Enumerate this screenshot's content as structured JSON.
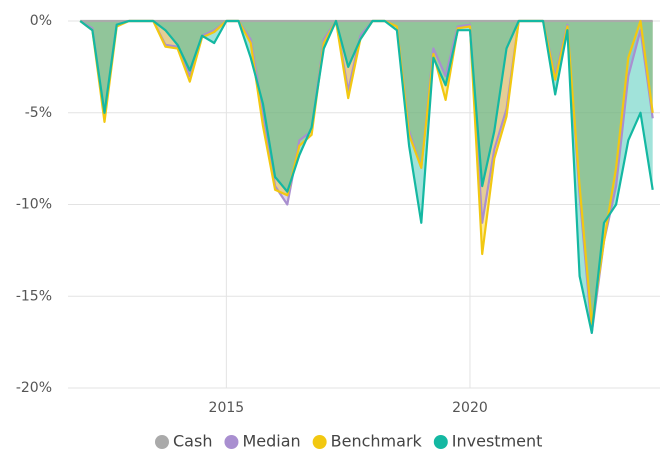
{
  "chart_data": {
    "type": "area",
    "x": [
      2012.0,
      2012.25,
      2012.5,
      2012.75,
      2013.0,
      2013.25,
      2013.5,
      2013.75,
      2014.0,
      2014.25,
      2014.5,
      2014.75,
      2015.0,
      2015.25,
      2015.5,
      2015.75,
      2016.0,
      2016.25,
      2016.5,
      2016.75,
      2017.0,
      2017.25,
      2017.5,
      2017.75,
      2018.0,
      2018.25,
      2018.5,
      2018.75,
      2019.0,
      2019.25,
      2019.5,
      2019.75,
      2020.0,
      2020.25,
      2020.5,
      2020.75,
      2021.0,
      2021.25,
      2021.5,
      2021.75,
      2022.0,
      2022.25,
      2022.5,
      2022.75,
      2023.0,
      2023.25,
      2023.5,
      2023.75
    ],
    "series": [
      {
        "name": "Cash",
        "color": "#aaaaaa",
        "values": [
          0,
          0,
          0,
          0,
          0,
          0,
          0,
          0,
          0,
          0,
          0,
          0,
          0,
          0,
          0,
          0,
          0,
          0,
          0,
          0,
          0,
          0,
          0,
          0,
          0,
          0,
          0,
          0,
          0,
          0,
          0,
          0,
          0,
          0,
          0,
          0,
          0,
          0,
          0,
          0,
          0,
          0,
          0,
          0,
          0,
          0,
          0,
          0
        ]
      },
      {
        "name": "Median",
        "color": "#a98fd0",
        "values": [
          0,
          -0.4,
          -5.2,
          -0.2,
          0,
          0,
          0,
          -1.3,
          -1.4,
          -3.0,
          -0.8,
          -0.5,
          0,
          0,
          -1.0,
          -5.0,
          -9.0,
          -10.0,
          -6.5,
          -6.0,
          -1.0,
          0,
          -3.8,
          -0.8,
          0,
          0,
          -0.3,
          -6.0,
          -8.0,
          -1.5,
          -3.0,
          -0.3,
          -0.2,
          -11.0,
          -7.0,
          -4.8,
          0,
          0,
          0,
          -3.0,
          -0.2,
          -9.5,
          -17.0,
          -12.0,
          -9.0,
          -3.0,
          -0.5,
          -5.3
        ]
      },
      {
        "name": "Benchmark",
        "color": "#f2c811",
        "values": [
          0,
          -0.5,
          -5.5,
          -0.3,
          0,
          0,
          0,
          -1.4,
          -1.5,
          -3.3,
          -0.9,
          -0.6,
          0,
          0,
          -1.2,
          -5.7,
          -9.2,
          -9.5,
          -6.8,
          -6.2,
          -1.2,
          0,
          -4.2,
          -1.0,
          0,
          0,
          -0.3,
          -6.2,
          -8.0,
          -1.8,
          -4.3,
          -0.4,
          -0.3,
          -12.7,
          -7.5,
          -5.2,
          0,
          0,
          0,
          -3.2,
          -0.3,
          -9.0,
          -16.5,
          -12.0,
          -8.0,
          -2.0,
          0,
          -5.0
        ]
      },
      {
        "name": "Investment",
        "color": "#14b8a2",
        "values": [
          0,
          -0.5,
          -5.0,
          -0.2,
          0,
          0,
          0,
          -0.5,
          -1.3,
          -2.7,
          -0.8,
          -1.2,
          0,
          0,
          -2.0,
          -4.5,
          -8.5,
          -9.3,
          -7.3,
          -5.8,
          -1.5,
          0,
          -2.5,
          -1.0,
          0,
          0,
          -0.5,
          -6.8,
          -11.0,
          -2.0,
          -3.5,
          -0.5,
          -0.5,
          -9.0,
          -6.0,
          -1.5,
          0,
          0,
          0,
          -4.0,
          -0.5,
          -13.9,
          -17.0,
          -11.0,
          -10.0,
          -6.5,
          -5.0,
          -9.2
        ]
      }
    ],
    "xlim": [
      2011.75,
      2023.9
    ],
    "xticks": [
      2015,
      2020
    ],
    "ylim": [
      -20,
      0
    ],
    "yticks": [
      {
        "value": 0,
        "label": "0%"
      },
      {
        "value": -5,
        "label": "-5%"
      },
      {
        "value": -10,
        "label": "-10%"
      },
      {
        "value": -15,
        "label": "-15%"
      },
      {
        "value": -20,
        "label": "-20%"
      }
    ],
    "grid": true,
    "legend": "bottom"
  }
}
